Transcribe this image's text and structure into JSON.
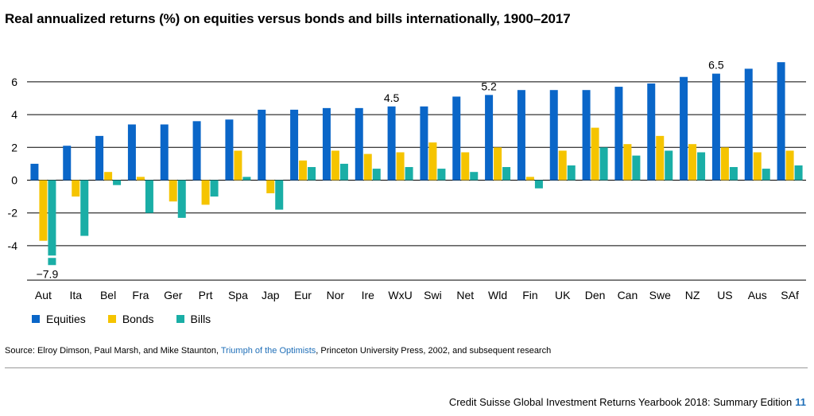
{
  "chart_data": {
    "type": "bar",
    "title": "Real annualized returns (%) on equities versus bonds and bills internationally, 1900–2017",
    "categories": [
      "Aut",
      "Ita",
      "Bel",
      "Fra",
      "Ger",
      "Prt",
      "Spa",
      "Jap",
      "Eur",
      "Nor",
      "Ire",
      "WxU",
      "Swi",
      "Net",
      "Wld",
      "Fin",
      "UK",
      "Den",
      "Can",
      "Swe",
      "NZ",
      "US",
      "Aus",
      "SAf"
    ],
    "series": [
      {
        "name": "Equities",
        "color": "#0a66c8",
        "values": [
          1.0,
          2.1,
          2.7,
          3.4,
          3.4,
          3.6,
          3.7,
          4.3,
          4.3,
          4.4,
          4.4,
          4.5,
          4.5,
          5.1,
          5.2,
          5.5,
          5.5,
          5.5,
          5.7,
          5.9,
          6.3,
          6.5,
          6.8,
          7.2
        ]
      },
      {
        "name": "Bonds",
        "color": "#f5c400",
        "values": [
          -3.7,
          -1.0,
          0.5,
          0.2,
          -1.3,
          -1.5,
          1.8,
          -0.8,
          1.2,
          1.8,
          1.6,
          1.7,
          2.3,
          1.7,
          2.0,
          0.2,
          1.8,
          3.2,
          2.2,
          2.7,
          2.2,
          2.0,
          1.7,
          1.8
        ]
      },
      {
        "name": "Bills",
        "color": "#1aaea6",
        "values": [
          -4.6,
          -3.4,
          -0.3,
          -2.0,
          -2.3,
          -1.0,
          0.2,
          -1.8,
          0.8,
          1.0,
          0.7,
          0.8,
          0.7,
          0.5,
          0.8,
          -0.5,
          0.9,
          2.0,
          1.5,
          1.8,
          1.7,
          0.8,
          0.7,
          0.9
        ],
        "truncated": {
          "index": 0,
          "actual": -7.9
        }
      }
    ],
    "yticks": [
      -4,
      -2,
      0,
      2,
      4,
      6
    ],
    "ylim": [
      -6.1,
      7.5
    ],
    "grid": true,
    "legend": "bottom-left",
    "annotations": [
      {
        "text": "−7.9",
        "category": "Aut",
        "series": "Bills"
      },
      {
        "text": "4.5",
        "category": "WxU",
        "series": "Equities"
      },
      {
        "text": "5.2",
        "category": "Wld",
        "series": "Equities"
      },
      {
        "text": "6.5",
        "category": "US",
        "series": "Equities"
      }
    ]
  },
  "source": {
    "prefix": "Source: Elroy Dimson, Paul Marsh, and Mike Staunton, ",
    "link": "Triumph of the Optimists",
    "suffix": ", Princeton University Press, 2002, and subsequent research"
  },
  "footer": {
    "text": "Credit Suisse Global Investment Returns Yearbook 2018: Summary Edition",
    "page": "11"
  }
}
